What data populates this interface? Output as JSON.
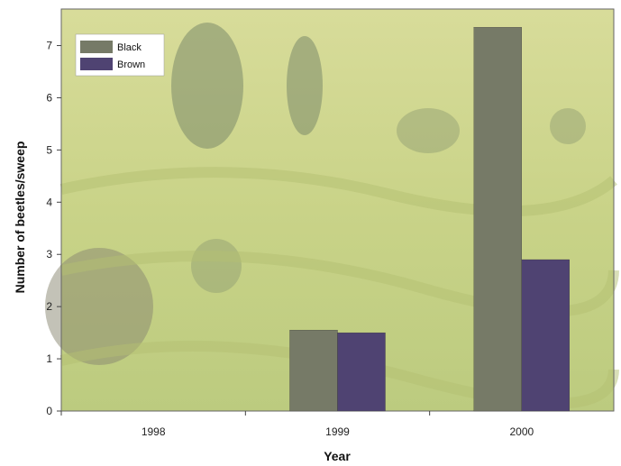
{
  "chart_data": {
    "type": "bar",
    "categories": [
      "1998",
      "1999",
      "2000"
    ],
    "series": [
      {
        "name": "Black",
        "values": [
          0.0,
          1.55,
          7.35
        ],
        "color": "#767a67"
      },
      {
        "name": "Brown",
        "values": [
          0.0,
          1.5,
          2.9
        ],
        "color": "#4f4372"
      }
    ],
    "xlabel": "Year",
    "ylabel": "Number of beetles/sweep",
    "ylim": [
      0,
      7.7
    ],
    "yticks": [
      0,
      1,
      2,
      3,
      4,
      5,
      6,
      7
    ],
    "legend_position": "top-left",
    "grid": false,
    "background": "photograph of green hillside with trees (faded)"
  }
}
